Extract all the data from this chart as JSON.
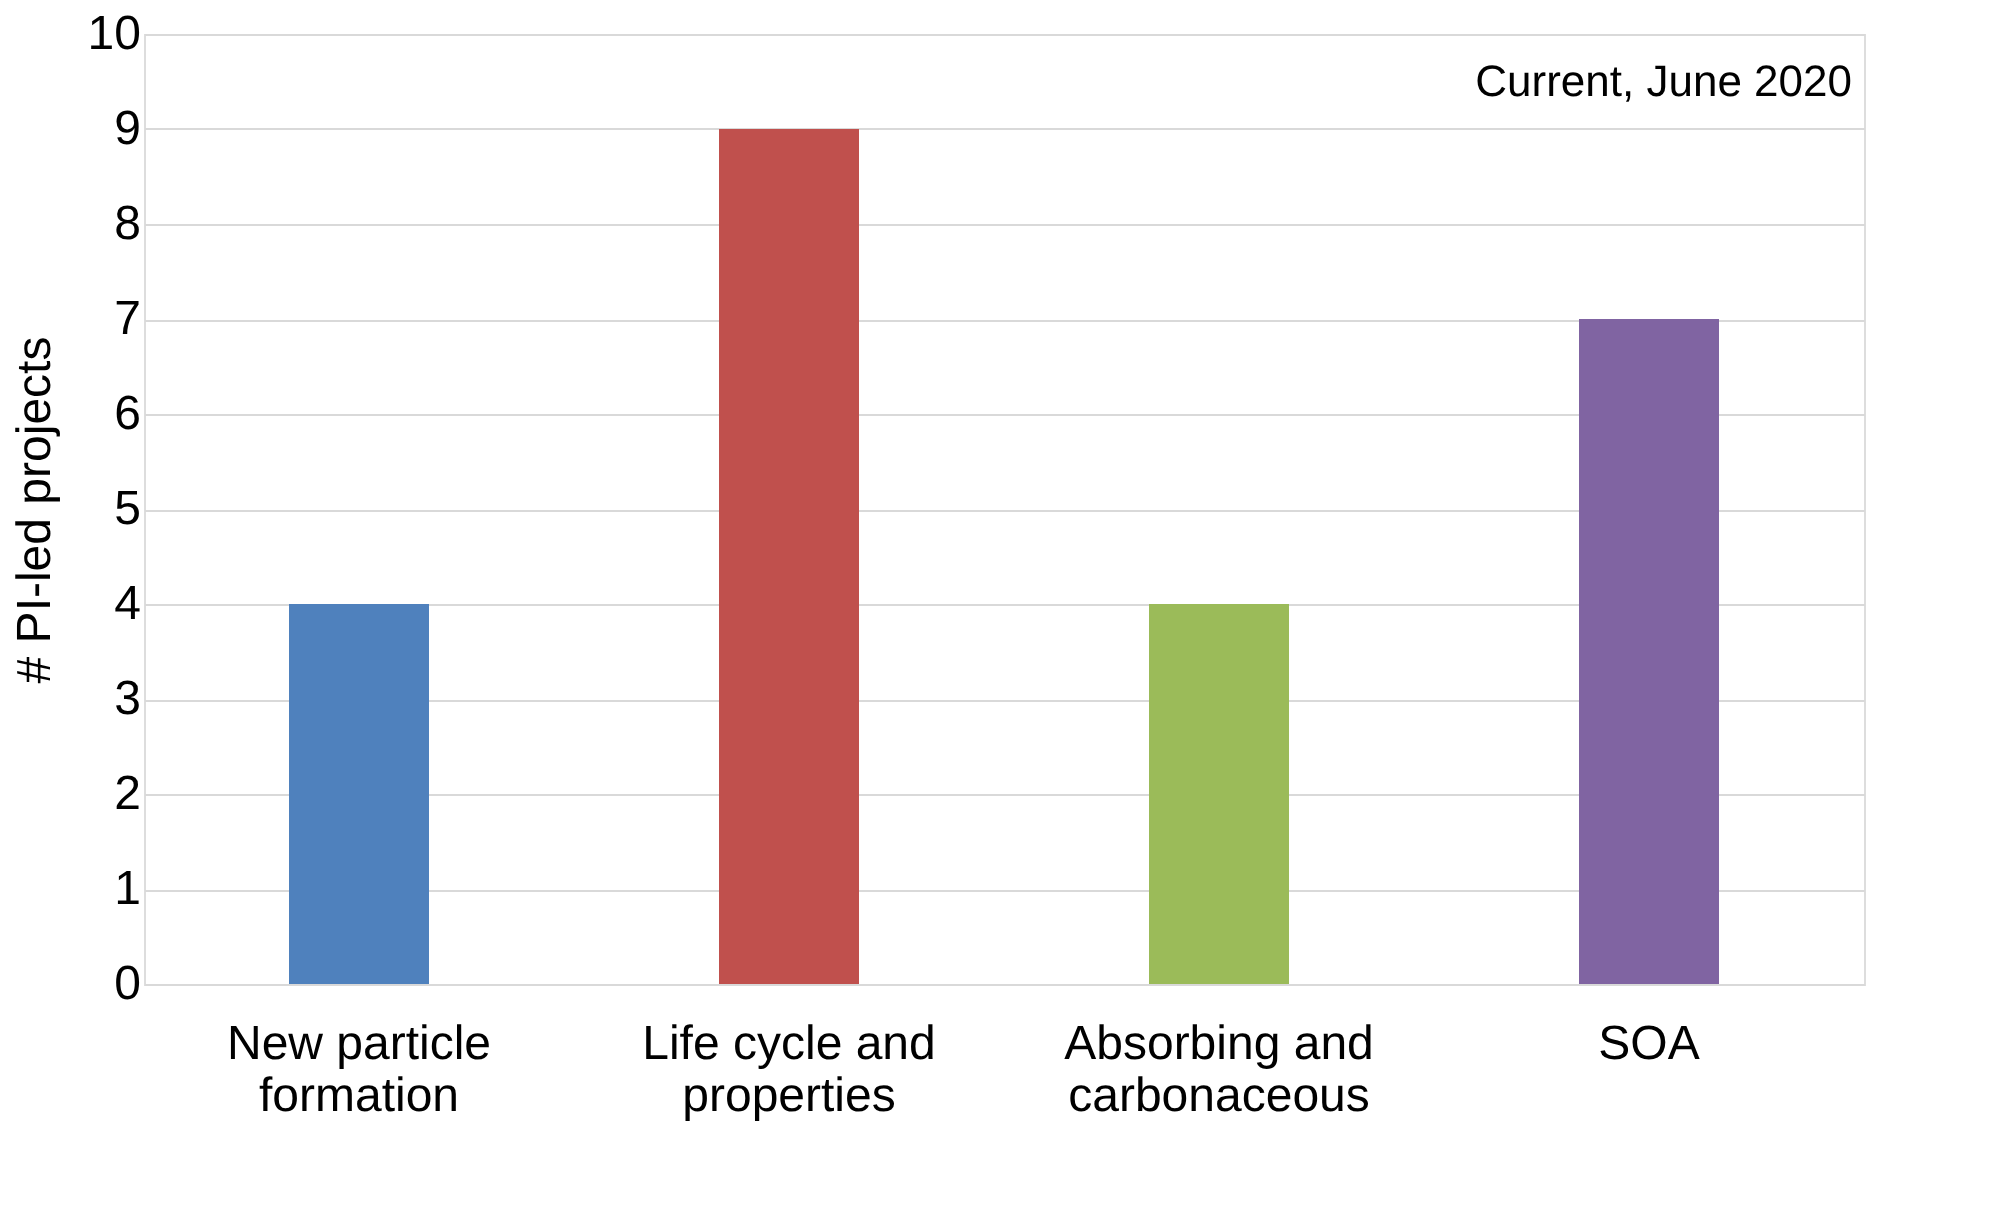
{
  "chart_data": {
    "type": "bar",
    "ylabel": "# PI-led projects",
    "categories": [
      "New particle\nformation",
      "Life cycle and\nproperties",
      "Absorbing  and\ncarbonaceous",
      "SOA"
    ],
    "values": [
      4,
      9,
      4,
      7
    ],
    "colors": [
      "#4f81bd",
      "#c0504d",
      "#9bbb59",
      "#8064a2"
    ],
    "ylim": [
      0,
      10
    ],
    "yticks": [
      0,
      1,
      2,
      3,
      4,
      5,
      6,
      7,
      8,
      9,
      10
    ],
    "grid": "y",
    "annotations": [
      "Current, June 2020"
    ]
  }
}
